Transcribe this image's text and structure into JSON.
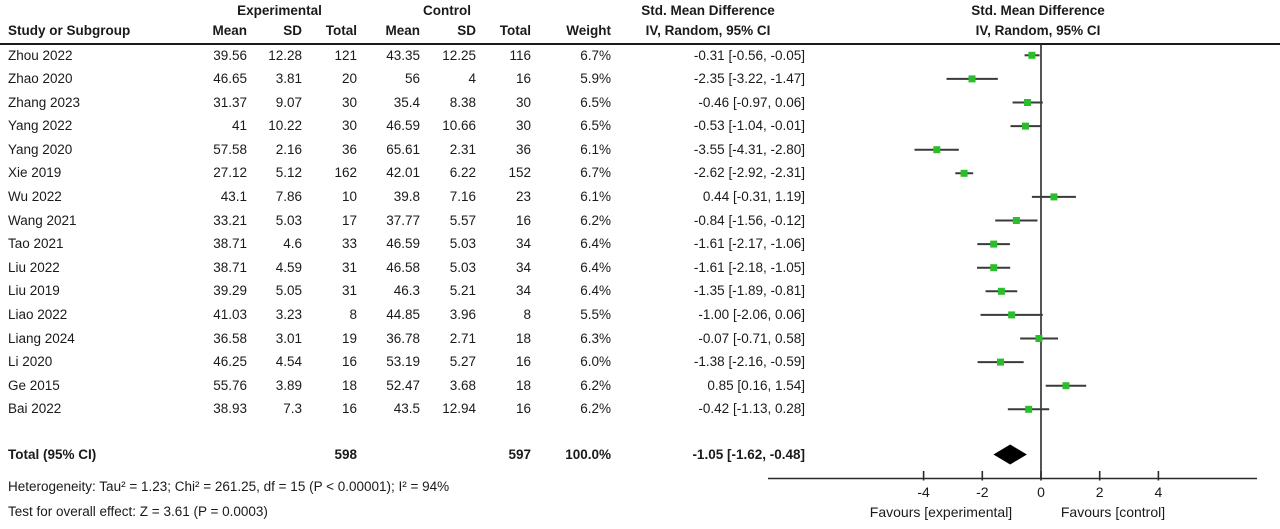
{
  "chart_data": {
    "type": "scatter",
    "variant": "forest-plot",
    "title": "Std. Mean Difference",
    "method_header": "IV, Random, 95% CI",
    "group_headers": {
      "experimental": "Experimental",
      "control": "Control"
    },
    "col_headers": {
      "study": "Study or Subgroup",
      "mean": "Mean",
      "sd": "SD",
      "total": "Total",
      "weight": "Weight"
    },
    "studies": [
      {
        "name": "Zhou 2022",
        "e_mean": "39.56",
        "e_sd": "12.28",
        "e_total": "121",
        "c_mean": "43.35",
        "c_sd": "12.25",
        "c_total": "116",
        "weight": "6.7%",
        "ci_text": "-0.31 [-0.56, -0.05]",
        "est": -0.31,
        "lo": -0.56,
        "hi": -0.05
      },
      {
        "name": "Zhao 2020",
        "e_mean": "46.65",
        "e_sd": "3.81",
        "e_total": "20",
        "c_mean": "56",
        "c_sd": "4",
        "c_total": "16",
        "weight": "5.9%",
        "ci_text": "-2.35 [-3.22, -1.47]",
        "est": -2.35,
        "lo": -3.22,
        "hi": -1.47
      },
      {
        "name": "Zhang 2023",
        "e_mean": "31.37",
        "e_sd": "9.07",
        "e_total": "30",
        "c_mean": "35.4",
        "c_sd": "8.38",
        "c_total": "30",
        "weight": "6.5%",
        "ci_text": "-0.46 [-0.97, 0.06]",
        "est": -0.46,
        "lo": -0.97,
        "hi": 0.06
      },
      {
        "name": "Yang 2022",
        "e_mean": "41",
        "e_sd": "10.22",
        "e_total": "30",
        "c_mean": "46.59",
        "c_sd": "10.66",
        "c_total": "30",
        "weight": "6.5%",
        "ci_text": "-0.53 [-1.04, -0.01]",
        "est": -0.53,
        "lo": -1.04,
        "hi": -0.01
      },
      {
        "name": "Yang 2020",
        "e_mean": "57.58",
        "e_sd": "2.16",
        "e_total": "36",
        "c_mean": "65.61",
        "c_sd": "2.31",
        "c_total": "36",
        "weight": "6.1%",
        "ci_text": "-3.55 [-4.31, -2.80]",
        "est": -3.55,
        "lo": -4.31,
        "hi": -2.8
      },
      {
        "name": "Xie 2019",
        "e_mean": "27.12",
        "e_sd": "5.12",
        "e_total": "162",
        "c_mean": "42.01",
        "c_sd": "6.22",
        "c_total": "152",
        "weight": "6.7%",
        "ci_text": "-2.62 [-2.92, -2.31]",
        "est": -2.62,
        "lo": -2.92,
        "hi": -2.31
      },
      {
        "name": "Wu 2022",
        "e_mean": "43.1",
        "e_sd": "7.86",
        "e_total": "10",
        "c_mean": "39.8",
        "c_sd": "7.16",
        "c_total": "23",
        "weight": "6.1%",
        "ci_text": "0.44 [-0.31, 1.19]",
        "est": 0.44,
        "lo": -0.31,
        "hi": 1.19
      },
      {
        "name": "Wang 2021",
        "e_mean": "33.21",
        "e_sd": "5.03",
        "e_total": "17",
        "c_mean": "37.77",
        "c_sd": "5.57",
        "c_total": "16",
        "weight": "6.2%",
        "ci_text": "-0.84 [-1.56, -0.12]",
        "est": -0.84,
        "lo": -1.56,
        "hi": -0.12
      },
      {
        "name": "Tao 2021",
        "e_mean": "38.71",
        "e_sd": "4.6",
        "e_total": "33",
        "c_mean": "46.59",
        "c_sd": "5.03",
        "c_total": "34",
        "weight": "6.4%",
        "ci_text": "-1.61 [-2.17, -1.06]",
        "est": -1.61,
        "lo": -2.17,
        "hi": -1.06
      },
      {
        "name": "Liu 2022",
        "e_mean": "38.71",
        "e_sd": "4.59",
        "e_total": "31",
        "c_mean": "46.58",
        "c_sd": "5.03",
        "c_total": "34",
        "weight": "6.4%",
        "ci_text": "-1.61 [-2.18, -1.05]",
        "est": -1.61,
        "lo": -2.18,
        "hi": -1.05
      },
      {
        "name": "Liu 2019",
        "e_mean": "39.29",
        "e_sd": "5.05",
        "e_total": "31",
        "c_mean": "46.3",
        "c_sd": "5.21",
        "c_total": "34",
        "weight": "6.4%",
        "ci_text": "-1.35 [-1.89, -0.81]",
        "est": -1.35,
        "lo": -1.89,
        "hi": -0.81
      },
      {
        "name": "Liao 2022",
        "e_mean": "41.03",
        "e_sd": "3.23",
        "e_total": "8",
        "c_mean": "44.85",
        "c_sd": "3.96",
        "c_total": "8",
        "weight": "5.5%",
        "ci_text": "-1.00 [-2.06, 0.06]",
        "est": -1.0,
        "lo": -2.06,
        "hi": 0.06
      },
      {
        "name": "Liang 2024",
        "e_mean": "36.58",
        "e_sd": "3.01",
        "e_total": "19",
        "c_mean": "36.78",
        "c_sd": "2.71",
        "c_total": "18",
        "weight": "6.3%",
        "ci_text": "-0.07 [-0.71, 0.58]",
        "est": -0.07,
        "lo": -0.71,
        "hi": 0.58
      },
      {
        "name": "Li 2020",
        "e_mean": "46.25",
        "e_sd": "4.54",
        "e_total": "16",
        "c_mean": "53.19",
        "c_sd": "5.27",
        "c_total": "16",
        "weight": "6.0%",
        "ci_text": "-1.38 [-2.16, -0.59]",
        "est": -1.38,
        "lo": -2.16,
        "hi": -0.59
      },
      {
        "name": "Ge 2015",
        "e_mean": "55.76",
        "e_sd": "3.89",
        "e_total": "18",
        "c_mean": "52.47",
        "c_sd": "3.68",
        "c_total": "18",
        "weight": "6.2%",
        "ci_text": "0.85 [0.16, 1.54]",
        "est": 0.85,
        "lo": 0.16,
        "hi": 1.54
      },
      {
        "name": "Bai 2022",
        "e_mean": "38.93",
        "e_sd": "7.3",
        "e_total": "16",
        "c_mean": "43.5",
        "c_sd": "12.94",
        "c_total": "16",
        "weight": "6.2%",
        "ci_text": "-0.42 [-1.13, 0.28]",
        "est": -0.42,
        "lo": -1.13,
        "hi": 0.28
      }
    ],
    "total": {
      "label": "Total (95% CI)",
      "e_total": "598",
      "c_total": "597",
      "weight": "100.0%",
      "ci_text": "-1.05 [-1.62, -0.48]",
      "est": -1.05,
      "lo": -1.62,
      "hi": -0.48
    },
    "heterogeneity": "Heterogeneity: Tau² = 1.23; Chi² = 261.25, df = 15 (P < 0.00001); I² = 94%",
    "overall_effect": "Test for overall effect: Z = 3.61 (P = 0.0003)",
    "axis": {
      "ticks": [
        -4,
        -2,
        0,
        2,
        4
      ],
      "tick_labels": [
        "-4",
        "-2",
        "0",
        "2",
        "4"
      ],
      "xlim": [
        -9.3,
        7.35
      ],
      "favours_left": "Favours [experimental]",
      "favours_right": "Favours [control]"
    },
    "colors": {
      "marker_green": "#2abf2a",
      "ci_line": "#3a3a3a",
      "axis_line": "#2b2b2b",
      "diamond": "#000000"
    }
  }
}
